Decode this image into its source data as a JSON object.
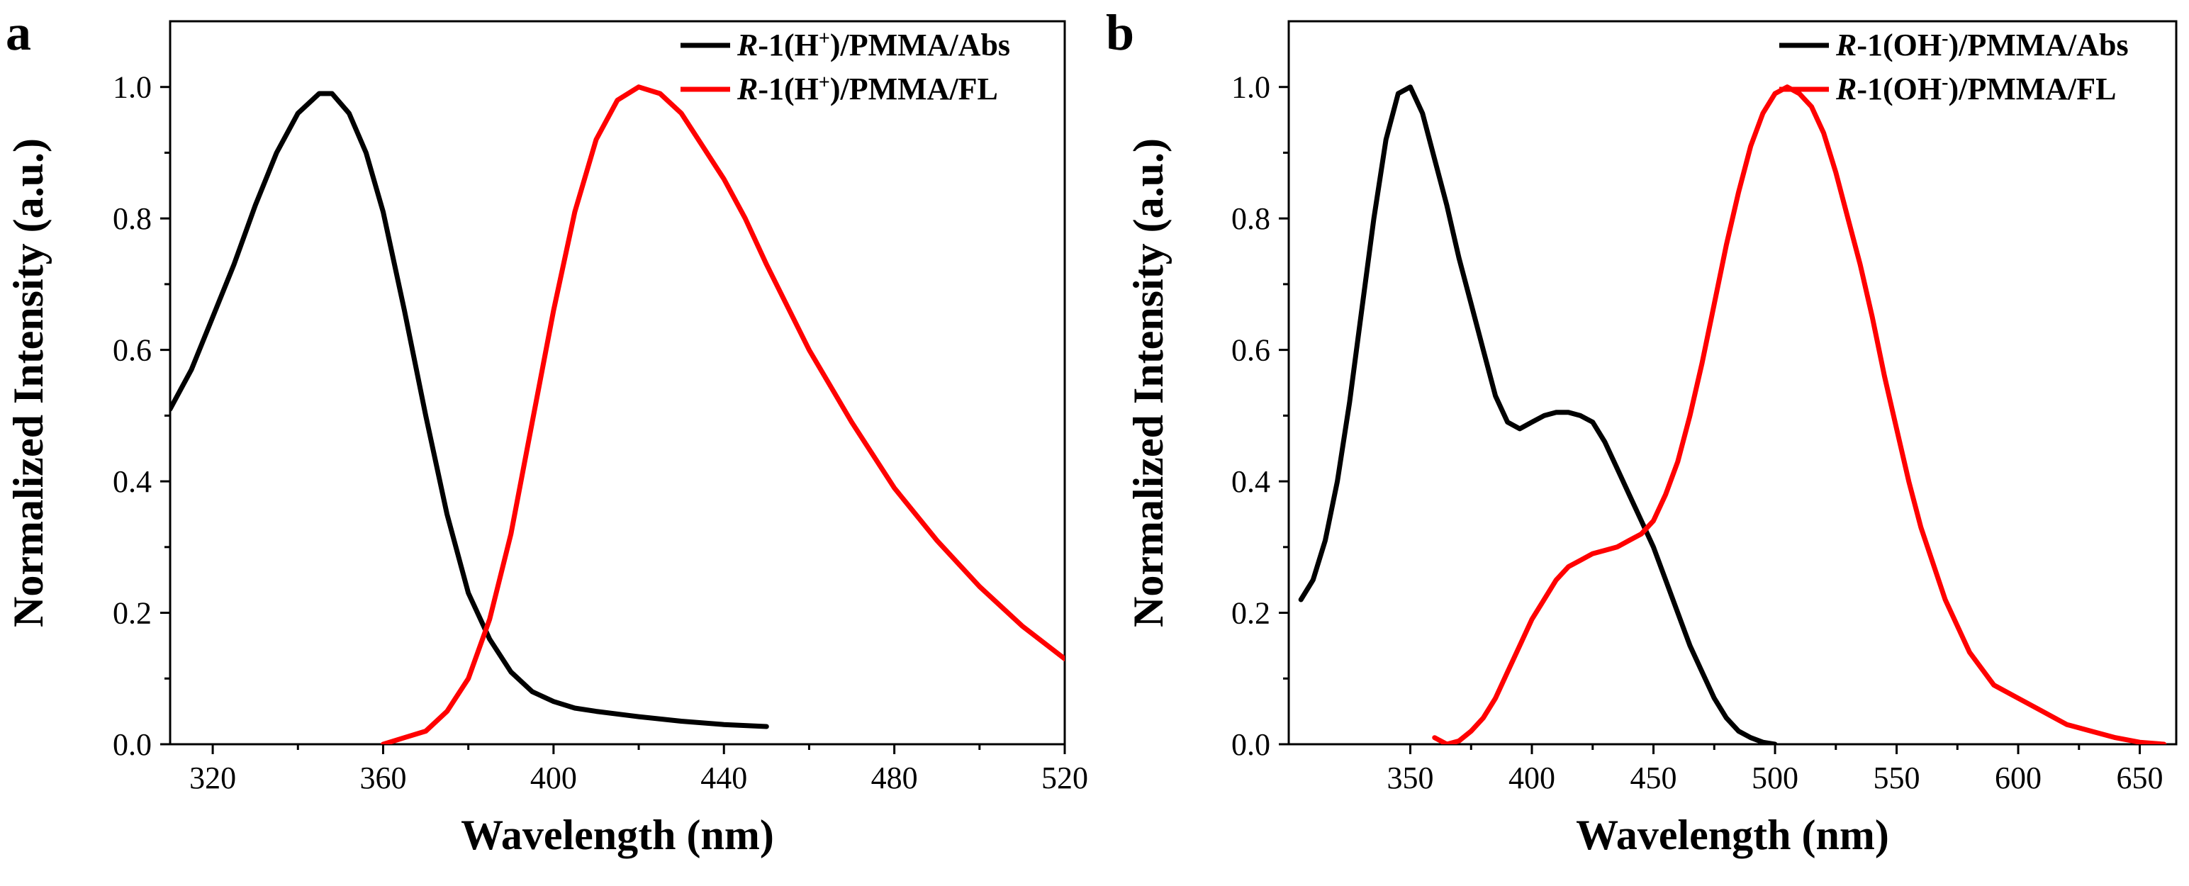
{
  "chart_data": [
    {
      "panel_label": "a",
      "type": "line",
      "xlabel": "Wavelength (nm)",
      "ylabel": "Normalized Intensity (a.u.)",
      "xlim": [
        310,
        520
      ],
      "ylim": [
        0,
        1.1
      ],
      "xticks": [
        320,
        360,
        400,
        440,
        480,
        520
      ],
      "yticks": [
        0.0,
        0.2,
        0.4,
        0.6,
        0.8,
        1.0
      ],
      "legend_position": "top-right",
      "series": [
        {
          "name": "R-1(H+)/PMMA/Abs",
          "legend": {
            "italic": "R",
            "a": "-1(H",
            "sup": "+",
            "b": ")/PMMA/Abs"
          },
          "color": "#000000",
          "x": [
            310,
            315,
            320,
            325,
            330,
            335,
            340,
            345,
            348,
            352,
            356,
            360,
            365,
            370,
            375,
            380,
            385,
            390,
            395,
            400,
            405,
            410,
            420,
            430,
            440,
            450
          ],
          "y": [
            0.51,
            0.57,
            0.65,
            0.73,
            0.82,
            0.9,
            0.96,
            0.99,
            0.99,
            0.96,
            0.9,
            0.81,
            0.66,
            0.5,
            0.35,
            0.23,
            0.16,
            0.11,
            0.08,
            0.065,
            0.055,
            0.05,
            0.042,
            0.035,
            0.03,
            0.027
          ]
        },
        {
          "name": "R-1(H+)/PMMA/FL",
          "legend": {
            "italic": "R",
            "a": "-1(H",
            "sup": "+",
            "b": ")/PMMA/FL"
          },
          "color": "#ff0000",
          "x": [
            360,
            365,
            370,
            375,
            380,
            385,
            390,
            395,
            400,
            405,
            410,
            415,
            420,
            425,
            430,
            435,
            440,
            445,
            450,
            460,
            470,
            480,
            490,
            500,
            510,
            520
          ],
          "y": [
            0.0,
            0.01,
            0.02,
            0.05,
            0.1,
            0.19,
            0.32,
            0.49,
            0.66,
            0.81,
            0.92,
            0.98,
            1.0,
            0.99,
            0.96,
            0.91,
            0.86,
            0.8,
            0.73,
            0.6,
            0.49,
            0.39,
            0.31,
            0.24,
            0.18,
            0.13
          ]
        }
      ]
    },
    {
      "panel_label": "b",
      "type": "line",
      "xlabel": "Wavelength (nm)",
      "ylabel": "Normalized Intensity (a.u.)",
      "xlim": [
        300,
        665
      ],
      "ylim": [
        0,
        1.1
      ],
      "xticks": [
        350,
        400,
        450,
        500,
        550,
        600,
        650
      ],
      "yticks": [
        0.0,
        0.2,
        0.4,
        0.6,
        0.8,
        1.0
      ],
      "legend_position": "top-right",
      "series": [
        {
          "name": "R-1(OH-)/PMMA/Abs",
          "legend": {
            "italic": "R",
            "a": "-1(OH",
            "sup": "-",
            "b": ")/PMMA/Abs"
          },
          "color": "#000000",
          "x": [
            305,
            310,
            315,
            320,
            325,
            330,
            335,
            340,
            345,
            350,
            355,
            360,
            365,
            370,
            375,
            380,
            385,
            390,
            395,
            400,
            405,
            410,
            415,
            420,
            425,
            430,
            435,
            440,
            445,
            450,
            455,
            460,
            465,
            470,
            475,
            480,
            485,
            490,
            495,
            500
          ],
          "y": [
            0.22,
            0.25,
            0.31,
            0.4,
            0.52,
            0.66,
            0.8,
            0.92,
            0.99,
            1.0,
            0.96,
            0.89,
            0.82,
            0.74,
            0.67,
            0.6,
            0.53,
            0.49,
            0.48,
            0.49,
            0.5,
            0.505,
            0.505,
            0.5,
            0.49,
            0.46,
            0.42,
            0.38,
            0.34,
            0.3,
            0.25,
            0.2,
            0.15,
            0.11,
            0.07,
            0.04,
            0.02,
            0.01,
            0.003,
            0.0
          ]
        },
        {
          "name": "R-1(OH-)/PMMA/FL",
          "legend": {
            "italic": "R",
            "a": "-1(OH",
            "sup": "-",
            "b": ")/PMMA/FL"
          },
          "color": "#ff0000",
          "x": [
            360,
            365,
            370,
            375,
            380,
            385,
            390,
            395,
            400,
            405,
            410,
            415,
            420,
            425,
            430,
            435,
            440,
            445,
            450,
            455,
            460,
            465,
            470,
            475,
            480,
            485,
            490,
            495,
            500,
            505,
            510,
            515,
            520,
            525,
            530,
            535,
            540,
            545,
            550,
            555,
            560,
            570,
            580,
            590,
            600,
            610,
            620,
            630,
            640,
            650,
            660
          ],
          "y": [
            0.01,
            0.0,
            0.005,
            0.02,
            0.04,
            0.07,
            0.11,
            0.15,
            0.19,
            0.22,
            0.25,
            0.27,
            0.28,
            0.29,
            0.295,
            0.3,
            0.31,
            0.32,
            0.34,
            0.38,
            0.43,
            0.5,
            0.58,
            0.67,
            0.76,
            0.84,
            0.91,
            0.96,
            0.99,
            1.0,
            0.99,
            0.97,
            0.93,
            0.87,
            0.8,
            0.73,
            0.65,
            0.56,
            0.48,
            0.4,
            0.33,
            0.22,
            0.14,
            0.09,
            0.07,
            0.05,
            0.03,
            0.02,
            0.01,
            0.003,
            0.0
          ]
        }
      ]
    }
  ]
}
